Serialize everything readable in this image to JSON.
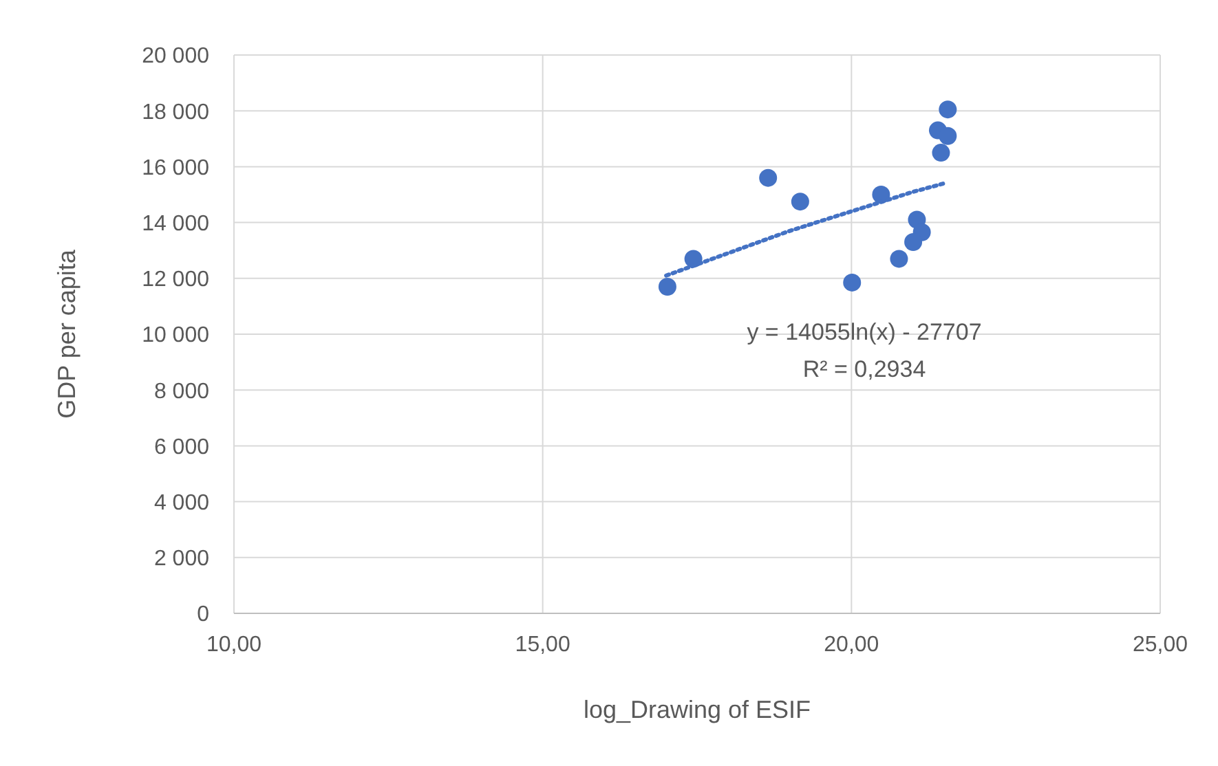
{
  "chart_data": {
    "type": "scatter",
    "xlabel": "log_Drawing of ESIF",
    "ylabel": "GDP per capita",
    "xlim": [
      10,
      25
    ],
    "xticks": [
      {
        "value": 10,
        "label": "10,00"
      },
      {
        "value": 15,
        "label": "15,00"
      },
      {
        "value": 20,
        "label": "20,00"
      },
      {
        "value": 25,
        "label": "25,00"
      }
    ],
    "ylim": [
      0,
      20000
    ],
    "yticks": [
      {
        "value": 0,
        "label": "0"
      },
      {
        "value": 2000,
        "label": "2 000"
      },
      {
        "value": 4000,
        "label": "4 000"
      },
      {
        "value": 6000,
        "label": "6 000"
      },
      {
        "value": 8000,
        "label": "8 000"
      },
      {
        "value": 10000,
        "label": "10 000"
      },
      {
        "value": 12000,
        "label": "12 000"
      },
      {
        "value": 14000,
        "label": "14 000"
      },
      {
        "value": 16000,
        "label": "16 000"
      },
      {
        "value": 18000,
        "label": "18 000"
      },
      {
        "value": 20000,
        "label": "20 000"
      }
    ],
    "grid": true,
    "marker": "circle",
    "series": [
      {
        "color": "#4472c4",
        "x": [
          17.02,
          17.44,
          18.65,
          19.17,
          20.01,
          20.48,
          20.77,
          21.06,
          21.14,
          21.0,
          21.45,
          21.4,
          21.56,
          21.56
        ],
        "values": [
          11700,
          12700,
          15600,
          14750,
          11850,
          15000,
          12700,
          14100,
          13650,
          13300,
          16500,
          17300,
          17100,
          18050
        ]
      },
      {
        "type": "line",
        "color": "#4472c4",
        "line_style": "dotted",
        "marker": "none",
        "x": [
          17.0,
          18,
          19,
          20,
          21,
          21.5
        ],
        "values": [
          12100,
          12900,
          13700,
          14400,
          15100,
          15400
        ]
      }
    ],
    "annotations": [
      "y = 14055ln(x) - 27707",
      "R² = 0,2934"
    ]
  }
}
